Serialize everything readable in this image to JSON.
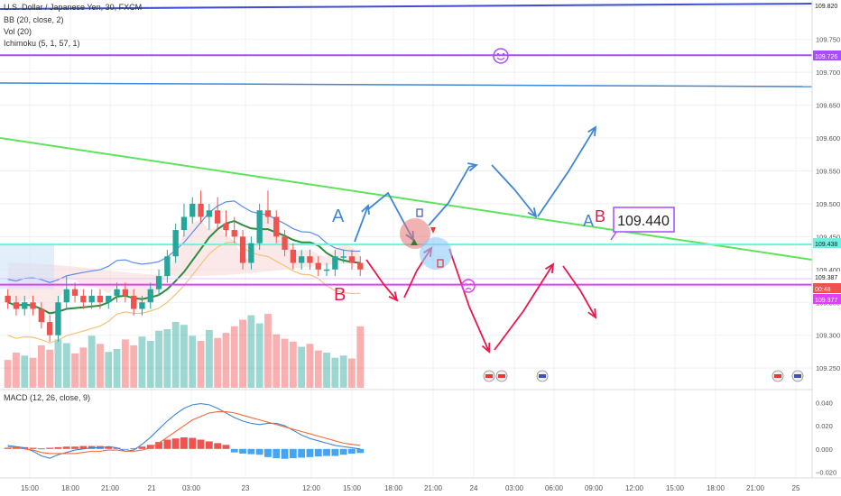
{
  "header": {
    "symbol": "U.S. Dollar / Japanese Yen, 30, FXCM",
    "bb": "BB (20, close, 2)",
    "vol": "Vol (20)",
    "ichimoku": "Ichimoku (5, 1, 57, 1)"
  },
  "macd_label": "MACD (12, 26, close, 9)",
  "price_tag": "109.440",
  "annotations": {
    "a1": "A",
    "b1": "B",
    "a2": "A",
    "b2": "B"
  },
  "colors": {
    "bull": "#26a69a",
    "bear": "#ef5350",
    "trend_blue": "#3f4fcf",
    "purple": "#a64dff",
    "cyan": "#6ff0e0",
    "green": "#5ee35e",
    "magenta": "#e040fb",
    "arrow_blue": "#3f86d6",
    "arrow_red": "#e8194b"
  },
  "chart_data": [
    {
      "type": "candlestick",
      "title": "U.S. Dollar / Japanese Yen, 30, FXCM",
      "x_ticks": [
        "15:00",
        "18:00",
        "21:00",
        "21",
        "03:00",
        "23",
        "12:00",
        "15:00",
        "18:00",
        "21:00",
        "24",
        "03:00",
        "06:00",
        "09:00",
        "12:00",
        "15:00",
        "18:00",
        "21:00",
        "25"
      ],
      "y_ticks": [
        109.25,
        109.3,
        109.35,
        109.4,
        109.45,
        109.5,
        109.55,
        109.6,
        109.65,
        109.7,
        109.75,
        109.8
      ],
      "ylim": [
        109.22,
        109.81
      ],
      "price_labels": [
        "109.820",
        "109.726",
        "109.438",
        "109.387",
        "00:48",
        "109.377"
      ],
      "horizontal_levels": [
        {
          "name": "purple",
          "value": 109.726
        },
        {
          "name": "cyan",
          "value": 109.438
        },
        {
          "name": "magenta",
          "value": 109.377
        }
      ],
      "candles": [
        [
          109.36,
          109.37,
          109.34,
          109.35
        ],
        [
          109.35,
          109.36,
          109.33,
          109.34
        ],
        [
          109.34,
          109.36,
          109.33,
          109.35
        ],
        [
          109.35,
          109.36,
          109.33,
          109.34
        ],
        [
          109.34,
          109.35,
          109.31,
          109.32
        ],
        [
          109.32,
          109.33,
          109.29,
          109.3
        ],
        [
          109.3,
          109.36,
          109.29,
          109.35
        ],
        [
          109.35,
          109.39,
          109.34,
          109.37
        ],
        [
          109.37,
          109.38,
          109.35,
          109.36
        ],
        [
          109.36,
          109.37,
          109.34,
          109.35
        ],
        [
          109.35,
          109.37,
          109.34,
          109.36
        ],
        [
          109.36,
          109.37,
          109.34,
          109.35
        ],
        [
          109.35,
          109.36,
          109.34,
          109.36
        ],
        [
          109.36,
          109.38,
          109.35,
          109.37
        ],
        [
          109.37,
          109.38,
          109.35,
          109.36
        ],
        [
          109.36,
          109.37,
          109.33,
          109.34
        ],
        [
          109.34,
          109.36,
          109.33,
          109.35
        ],
        [
          109.35,
          109.38,
          109.34,
          109.37
        ],
        [
          109.37,
          109.4,
          109.36,
          109.39
        ],
        [
          109.39,
          109.43,
          109.38,
          109.42
        ],
        [
          109.42,
          109.47,
          109.41,
          109.46
        ],
        [
          109.46,
          109.5,
          109.45,
          109.48
        ],
        [
          109.48,
          109.51,
          109.47,
          109.5
        ],
        [
          109.5,
          109.52,
          109.47,
          109.48
        ],
        [
          109.48,
          109.5,
          109.46,
          109.49
        ],
        [
          109.49,
          109.51,
          109.46,
          109.47
        ],
        [
          109.47,
          109.49,
          109.45,
          109.46
        ],
        [
          109.46,
          109.48,
          109.44,
          109.45
        ],
        [
          109.45,
          109.46,
          109.4,
          109.41
        ],
        [
          109.41,
          109.45,
          109.4,
          109.44
        ],
        [
          109.44,
          109.5,
          109.43,
          109.49
        ],
        [
          109.49,
          109.52,
          109.47,
          109.48
        ],
        [
          109.48,
          109.49,
          109.44,
          109.45
        ],
        [
          109.45,
          109.46,
          109.42,
          109.43
        ],
        [
          109.43,
          109.44,
          109.4,
          109.41
        ],
        [
          109.41,
          109.43,
          109.4,
          109.42
        ],
        [
          109.42,
          109.43,
          109.4,
          109.41
        ],
        [
          109.41,
          109.42,
          109.39,
          109.4
        ],
        [
          109.4,
          109.41,
          109.39,
          109.4
        ],
        [
          109.4,
          109.43,
          109.39,
          109.42
        ],
        [
          109.42,
          109.43,
          109.41,
          109.42
        ],
        [
          109.42,
          109.43,
          109.4,
          109.41
        ],
        [
          109.41,
          109.42,
          109.39,
          109.4
        ]
      ],
      "volume": [
        38,
        48,
        44,
        41,
        58,
        52,
        66,
        61,
        47,
        55,
        71,
        60,
        49,
        53,
        66,
        58,
        70,
        64,
        78,
        80,
        90,
        86,
        71,
        64,
        79,
        68,
        75,
        84,
        93,
        99,
        88,
        101,
        73,
        67,
        63,
        56,
        60,
        51,
        48,
        41,
        44,
        40,
        84
      ]
    },
    {
      "type": "line",
      "title": "MACD (12, 26, close, 9)",
      "y_ticks": [
        -0.02,
        0,
        0.02,
        0.04
      ],
      "ylim": [
        -0.025,
        0.048
      ],
      "histogram": [
        0.001,
        0.002,
        0.0015,
        0.001,
        0.0005,
        0.001,
        0.0015,
        0.002,
        0.002,
        0.0025,
        0.0025,
        0.0025,
        0.002,
        0.001,
        -0.0005,
        0.0005,
        0.002,
        0.0035,
        0.006,
        0.008,
        0.009,
        0.01,
        0.0095,
        0.008,
        0.0065,
        0.005,
        0.0035,
        -0.003,
        -0.004,
        -0.0045,
        -0.005,
        -0.007,
        -0.008,
        -0.0085,
        -0.008,
        -0.0075,
        -0.007,
        -0.0065,
        -0.006,
        -0.006,
        -0.005,
        -0.004,
        -0.0035
      ],
      "series": [
        {
          "values": [
            0.003,
            0.002,
            0.001,
            -0.002,
            -0.006,
            -0.008,
            -0.005,
            -0.003,
            -0.001,
            0.0,
            0.001,
            0.001,
            0.002,
            0.001,
            -0.002,
            -0.001,
            0.004,
            0.01,
            0.017,
            0.024,
            0.03,
            0.035,
            0.038,
            0.039,
            0.038,
            0.035,
            0.031,
            0.027,
            0.024,
            0.022,
            0.021,
            0.022,
            0.022,
            0.02,
            0.016,
            0.012,
            0.009,
            0.007,
            0.005,
            0.003,
            0.002,
            0.001,
            0.0
          ]
        },
        {
          "values": [
            0.002,
            0.001,
            0.0,
            -0.001,
            -0.003,
            -0.004,
            -0.004,
            -0.004,
            -0.004,
            -0.003,
            -0.002,
            -0.002,
            -0.001,
            -0.001,
            -0.002,
            -0.002,
            -0.001,
            0.001,
            0.005,
            0.01,
            0.015,
            0.02,
            0.025,
            0.028,
            0.031,
            0.032,
            0.032,
            0.031,
            0.029,
            0.027,
            0.025,
            0.023,
            0.021,
            0.019,
            0.017,
            0.015,
            0.013,
            0.011,
            0.009,
            0.007,
            0.005,
            0.004,
            0.003
          ]
        }
      ]
    }
  ]
}
